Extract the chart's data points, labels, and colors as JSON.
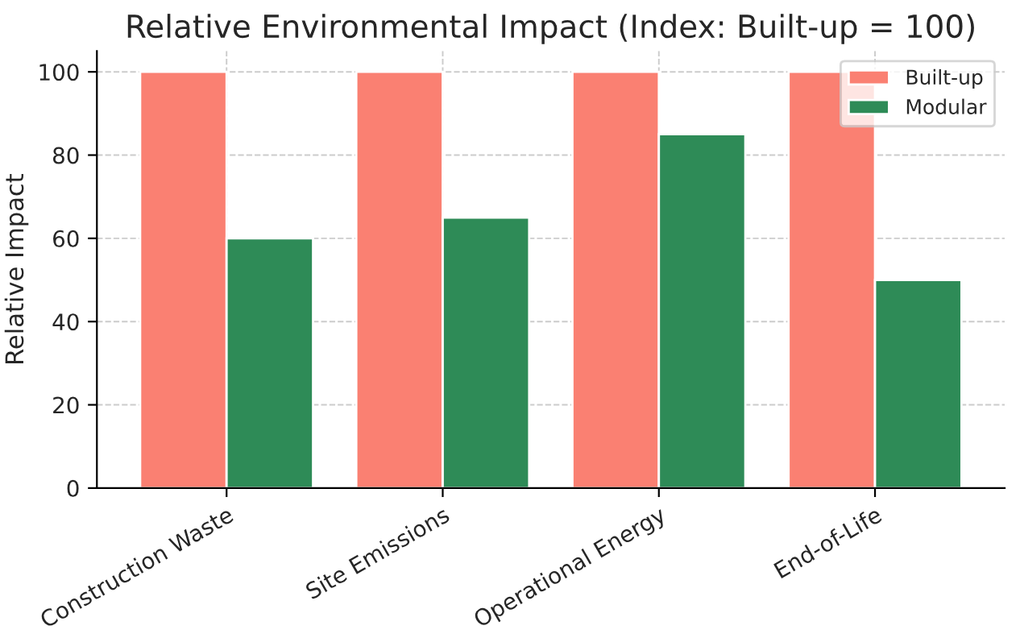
{
  "chart_data": {
    "type": "bar",
    "title": "Relative Environmental Impact (Index: Built-up = 100)",
    "ylabel": "Relative Impact",
    "categories": [
      "Construction Waste",
      "Site Emissions",
      "Operational Energy",
      "End-of-Life"
    ],
    "series": [
      {
        "name": "Built-up",
        "color": "#fa8072",
        "values": [
          100,
          100,
          100,
          100
        ]
      },
      {
        "name": "Modular",
        "color": "#2e8b57",
        "values": [
          60,
          65,
          85,
          50
        ]
      }
    ],
    "ylim": [
      0,
      105
    ],
    "yticks": [
      0,
      20,
      40,
      60,
      80,
      100
    ],
    "grid": true,
    "legend": "top right"
  }
}
